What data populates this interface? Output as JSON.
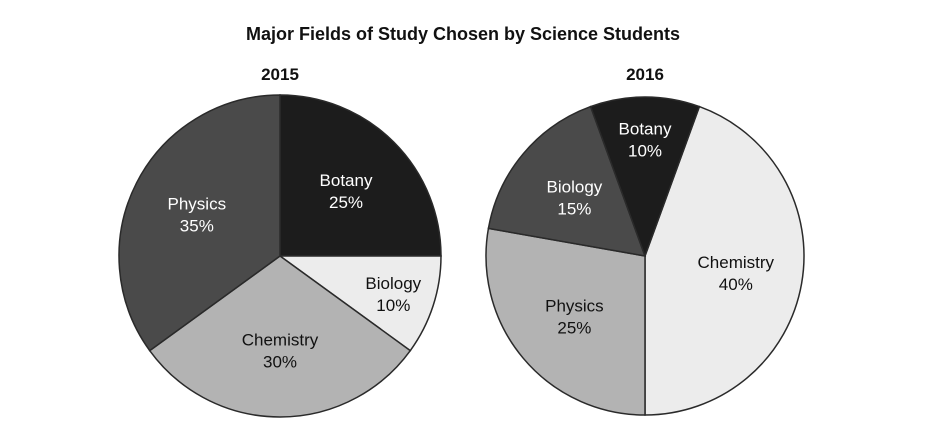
{
  "title": "Major Fields of Study Chosen by Science Students",
  "chart_data": [
    {
      "type": "pie",
      "title": "2015",
      "slices": [
        {
          "label": "Botany",
          "value": 25,
          "display": "25%",
          "color": "#1c1c1c",
          "text_color": "#ffffff"
        },
        {
          "label": "Biology",
          "value": 10,
          "display": "10%",
          "color": "#ececec",
          "text_color": "#111111"
        },
        {
          "label": "Chemistry",
          "value": 30,
          "display": "30%",
          "color": "#b3b3b3",
          "text_color": "#111111"
        },
        {
          "label": "Physics",
          "value": 35,
          "display": "35%",
          "color": "#4a4a4a",
          "text_color": "#ffffff"
        }
      ]
    },
    {
      "type": "pie",
      "title": "2016",
      "slices": [
        {
          "label": "Chemistry",
          "value": 40,
          "display": "40%",
          "color": "#ececec",
          "text_color": "#111111"
        },
        {
          "label": "Physics",
          "value": 25,
          "display": "25%",
          "color": "#b3b3b3",
          "text_color": "#111111"
        },
        {
          "label": "Biology",
          "value": 15,
          "display": "15%",
          "color": "#4a4a4a",
          "text_color": "#ffffff"
        },
        {
          "label": "Botany",
          "value": 10,
          "display": "10%",
          "color": "#1c1c1c",
          "text_color": "#ffffff"
        }
      ]
    }
  ]
}
